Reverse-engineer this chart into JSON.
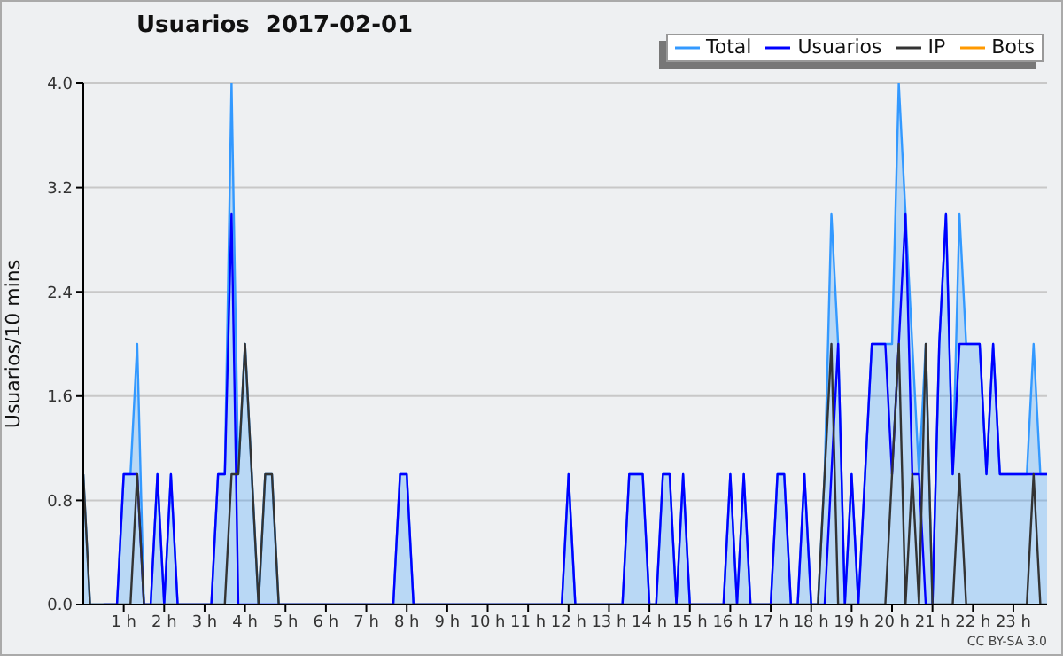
{
  "chart_data": {
    "type": "line",
    "title": "Usuarios  2017-02-01",
    "ylabel": "Usuarios/10 mins",
    "annotations": [
      "CC BY-SA 3.0"
    ],
    "x": [
      0,
      0.1667,
      0.3333,
      0.5,
      0.6667,
      0.8333,
      1,
      1.1667,
      1.3333,
      1.5,
      1.6667,
      1.8333,
      2,
      2.1667,
      2.3333,
      2.5,
      2.6667,
      2.8333,
      3,
      3.1667,
      3.3333,
      3.5,
      3.6667,
      3.8333,
      4,
      4.1667,
      4.3333,
      4.5,
      4.6667,
      4.8333,
      5,
      5.1667,
      5.3333,
      5.5,
      5.6667,
      5.8333,
      6,
      6.1667,
      6.3333,
      6.5,
      6.6667,
      6.8333,
      7,
      7.1667,
      7.3333,
      7.5,
      7.6667,
      7.8333,
      8,
      8.1667,
      8.3333,
      8.5,
      8.6667,
      8.8333,
      9,
      9.1667,
      9.3333,
      9.5,
      9.6667,
      9.8333,
      10,
      10.1667,
      10.3333,
      10.5,
      10.6667,
      10.8333,
      11,
      11.1667,
      11.3333,
      11.5,
      11.6667,
      11.8333,
      12,
      12.1667,
      12.3333,
      12.5,
      12.6667,
      12.8333,
      13,
      13.1667,
      13.3333,
      13.5,
      13.6667,
      13.8333,
      14,
      14.1667,
      14.3333,
      14.5,
      14.6667,
      14.8333,
      15,
      15.1667,
      15.3333,
      15.5,
      15.6667,
      15.8333,
      16,
      16.1667,
      16.3333,
      16.5,
      16.6667,
      16.8333,
      17,
      17.1667,
      17.3333,
      17.5,
      17.6667,
      17.8333,
      18,
      18.1667,
      18.3333,
      18.5,
      18.6667,
      18.8333,
      19,
      19.1667,
      19.3333,
      19.5,
      19.6667,
      19.8333,
      20,
      20.1667,
      20.3333,
      20.5,
      20.6667,
      20.8333,
      21,
      21.1667,
      21.3333,
      21.5,
      21.6667,
      21.8333,
      22,
      22.1667,
      22.3333,
      22.5,
      22.6667,
      22.8333,
      23,
      23.1667,
      23.3333,
      23.5,
      23.6667,
      23.8333
    ],
    "xlim": [
      0,
      23.8333
    ],
    "xticks": [
      {
        "value": 1,
        "label": "1 h"
      },
      {
        "value": 2,
        "label": "2 h"
      },
      {
        "value": 3,
        "label": "3 h"
      },
      {
        "value": 4,
        "label": "4 h"
      },
      {
        "value": 5,
        "label": "5 h"
      },
      {
        "value": 6,
        "label": "6 h"
      },
      {
        "value": 7,
        "label": "7 h"
      },
      {
        "value": 8,
        "label": "8 h"
      },
      {
        "value": 9,
        "label": "9 h"
      },
      {
        "value": 10,
        "label": "10 h"
      },
      {
        "value": 11,
        "label": "11 h"
      },
      {
        "value": 12,
        "label": "12 h"
      },
      {
        "value": 13,
        "label": "13 h"
      },
      {
        "value": 14,
        "label": "14 h"
      },
      {
        "value": 15,
        "label": "15 h"
      },
      {
        "value": 16,
        "label": "16 h"
      },
      {
        "value": 17,
        "label": "17 h"
      },
      {
        "value": 18,
        "label": "18 h"
      },
      {
        "value": 19,
        "label": "19 h"
      },
      {
        "value": 20,
        "label": "20 h"
      },
      {
        "value": 21,
        "label": "21 h"
      },
      {
        "value": 22,
        "label": "22 h"
      },
      {
        "value": 23,
        "label": "23 h"
      }
    ],
    "ylim": [
      0,
      4
    ],
    "yticks": [
      {
        "value": 0,
        "label": "0.0"
      },
      0.8,
      1.6,
      2.4,
      3.2,
      {
        "value": 4,
        "label": "4.0"
      }
    ],
    "grid": "y",
    "legend": "top right",
    "marker": "none",
    "line_style": "solid",
    "series": [
      {
        "name": "Total",
        "type": "area",
        "color": "#3399ff",
        "values": [
          1,
          0,
          0,
          0,
          0,
          0,
          1,
          1,
          2,
          0,
          0,
          1,
          0,
          1,
          0,
          0,
          0,
          0,
          0,
          0,
          1,
          1,
          4,
          1,
          2,
          1,
          0,
          1,
          1,
          0,
          0,
          0,
          0,
          0,
          0,
          0,
          0,
          0,
          0,
          0,
          0,
          0,
          0,
          0,
          0,
          0,
          0,
          1,
          1,
          0,
          0,
          0,
          0,
          0,
          0,
          0,
          0,
          0,
          0,
          0,
          0,
          0,
          0,
          0,
          0,
          0,
          0,
          0,
          0,
          0,
          0,
          0,
          1,
          0,
          0,
          0,
          0,
          0,
          0,
          0,
          0,
          1,
          1,
          1,
          0,
          0,
          1,
          1,
          0,
          1,
          0,
          0,
          0,
          0,
          0,
          0,
          1,
          0,
          1,
          0,
          0,
          0,
          0,
          1,
          1,
          0,
          0,
          1,
          0,
          0,
          1,
          3,
          2,
          0,
          1,
          0,
          1,
          2,
          2,
          2,
          2,
          4,
          3,
          2,
          1,
          2,
          0,
          2,
          3,
          1,
          3,
          2,
          2,
          2,
          1,
          2,
          1,
          1,
          1,
          1,
          1,
          2,
          1,
          1
        ]
      },
      {
        "name": "Usuarios",
        "color": "#0000ff",
        "values": [
          null,
          null,
          null,
          0,
          0,
          0,
          1,
          1,
          1,
          0,
          0,
          1,
          0,
          1,
          0,
          0,
          0,
          0,
          0,
          0,
          1,
          1,
          3,
          0,
          0,
          0,
          0,
          0,
          0,
          0,
          0,
          0,
          0,
          0,
          0,
          0,
          0,
          0,
          0,
          0,
          0,
          0,
          0,
          0,
          0,
          0,
          0,
          1,
          1,
          0,
          0,
          0,
          0,
          0,
          0,
          0,
          0,
          0,
          0,
          0,
          0,
          0,
          0,
          0,
          0,
          0,
          0,
          0,
          0,
          0,
          0,
          0,
          1,
          0,
          0,
          0,
          0,
          0,
          0,
          0,
          0,
          1,
          1,
          1,
          0,
          0,
          1,
          1,
          0,
          1,
          0,
          0,
          0,
          0,
          0,
          0,
          1,
          0,
          1,
          0,
          0,
          0,
          0,
          1,
          1,
          0,
          0,
          1,
          0,
          0,
          0,
          1,
          2,
          0,
          1,
          0,
          1,
          2,
          2,
          2,
          1,
          2,
          3,
          1,
          1,
          0,
          0,
          2,
          3,
          1,
          2,
          2,
          2,
          2,
          1,
          2,
          1,
          1,
          1,
          1,
          1,
          1,
          1,
          1
        ]
      },
      {
        "name": "IP",
        "color": "#333333",
        "values": [
          1,
          0,
          0,
          0,
          0,
          0,
          0,
          0,
          1,
          0,
          0,
          0,
          0,
          0,
          0,
          0,
          0,
          0,
          0,
          0,
          0,
          0,
          1,
          1,
          2,
          1,
          0,
          1,
          1,
          0,
          0,
          0,
          0,
          0,
          0,
          0,
          0,
          0,
          0,
          0,
          0,
          0,
          0,
          0,
          0,
          0,
          0,
          0,
          0,
          0,
          0,
          0,
          0,
          0,
          0,
          0,
          0,
          0,
          0,
          0,
          0,
          0,
          0,
          0,
          0,
          0,
          0,
          0,
          0,
          0,
          0,
          0,
          0,
          0,
          0,
          0,
          0,
          0,
          0,
          0,
          0,
          0,
          0,
          0,
          0,
          0,
          0,
          0,
          0,
          0,
          0,
          0,
          0,
          0,
          0,
          0,
          0,
          0,
          0,
          0,
          0,
          0,
          0,
          0,
          0,
          0,
          0,
          0,
          0,
          0,
          1,
          2,
          0,
          0,
          0,
          0,
          0,
          0,
          0,
          0,
          1,
          2,
          0,
          1,
          0,
          2,
          0,
          0,
          0,
          0,
          1,
          0,
          0,
          0,
          0,
          0,
          0,
          0,
          0,
          0,
          0,
          1,
          0,
          0
        ]
      },
      {
        "name": "Bots",
        "color": "#ff9900",
        "values": [
          null,
          null,
          null,
          null,
          null,
          null,
          null,
          null,
          null,
          null,
          null,
          null,
          null,
          null,
          null,
          null,
          null,
          null,
          null,
          null,
          null,
          null,
          null,
          null,
          null,
          null,
          null,
          null,
          null,
          null,
          null,
          null,
          null,
          null,
          null,
          null,
          null,
          null,
          null,
          null,
          null,
          null,
          null,
          null,
          null,
          null,
          null,
          null,
          null,
          null,
          null,
          null,
          null,
          null,
          null,
          null,
          null,
          null,
          null,
          null,
          null,
          null,
          null,
          null,
          null,
          null,
          null,
          null,
          null,
          null,
          null,
          null,
          null,
          null,
          null,
          null,
          null,
          null,
          null,
          null,
          null,
          null,
          null,
          null,
          null,
          null,
          null,
          null,
          null,
          null,
          null,
          null,
          null,
          null,
          null,
          null,
          null,
          null,
          null,
          null,
          null,
          null,
          null,
          null,
          null,
          null,
          null,
          null,
          null,
          null,
          null,
          null,
          null,
          null,
          null,
          null,
          null,
          null,
          null,
          null,
          null,
          null,
          null,
          null,
          null,
          null,
          null,
          null,
          null,
          null,
          null,
          null,
          null,
          null,
          null,
          null,
          null,
          null,
          null,
          null,
          null,
          null,
          null,
          null
        ]
      }
    ]
  }
}
